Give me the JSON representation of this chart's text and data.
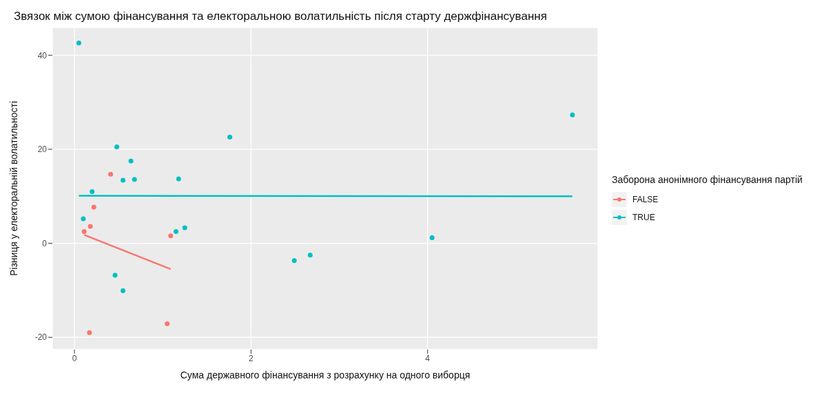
{
  "chart_data": {
    "type": "scatter",
    "title": "Звязок між сумою фінансування та електоральною волатильність після старту держфінансування",
    "xlabel": "Сума державного фінансування з розрахунку на одного виборця",
    "ylabel": "Різниця у електоральній волатильності",
    "legend_title": "Заборона анонімного фінансування партій",
    "series": [
      {
        "name": "FALSE",
        "color": "#f8766d",
        "marker": "circle",
        "x": [
          0.41,
          0.22,
          0.18,
          0.11,
          1.09,
          1.05,
          0.17
        ],
        "values": [
          14.7,
          7.7,
          3.6,
          2.5,
          1.6,
          -17.1,
          -19.0
        ]
      },
      {
        "name": "TRUE",
        "color": "#00bfc4",
        "marker": "circle",
        "x": [
          0.05,
          0.48,
          0.64,
          0.2,
          0.55,
          0.68,
          1.18,
          1.76,
          0.1,
          1.15,
          1.25,
          0.46,
          0.55,
          2.49,
          2.67,
          4.05,
          5.64
        ],
        "values": [
          42.6,
          20.5,
          17.5,
          11.0,
          13.4,
          13.6,
          13.7,
          22.6,
          5.2,
          2.5,
          3.3,
          -6.8,
          -10.1,
          -3.7,
          -2.5,
          1.2,
          27.3
        ]
      },
      {
        "type": "line",
        "color": "#f8766d",
        "marker": "none",
        "x": [
          0.11,
          1.09
        ],
        "values": [
          1.8,
          -5.5
        ]
      },
      {
        "type": "line",
        "color": "#00bfc4",
        "marker": "none",
        "x": [
          0.05,
          5.64
        ],
        "values": [
          10.1,
          10.0
        ]
      }
    ],
    "xlim": [
      -0.25,
      5.93
    ],
    "xticks": [
      0,
      2,
      4
    ],
    "ylim": [
      -22.6,
      45.9
    ],
    "yticks": [
      -20,
      0,
      20,
      40
    ],
    "grid": true,
    "legend": "right"
  }
}
